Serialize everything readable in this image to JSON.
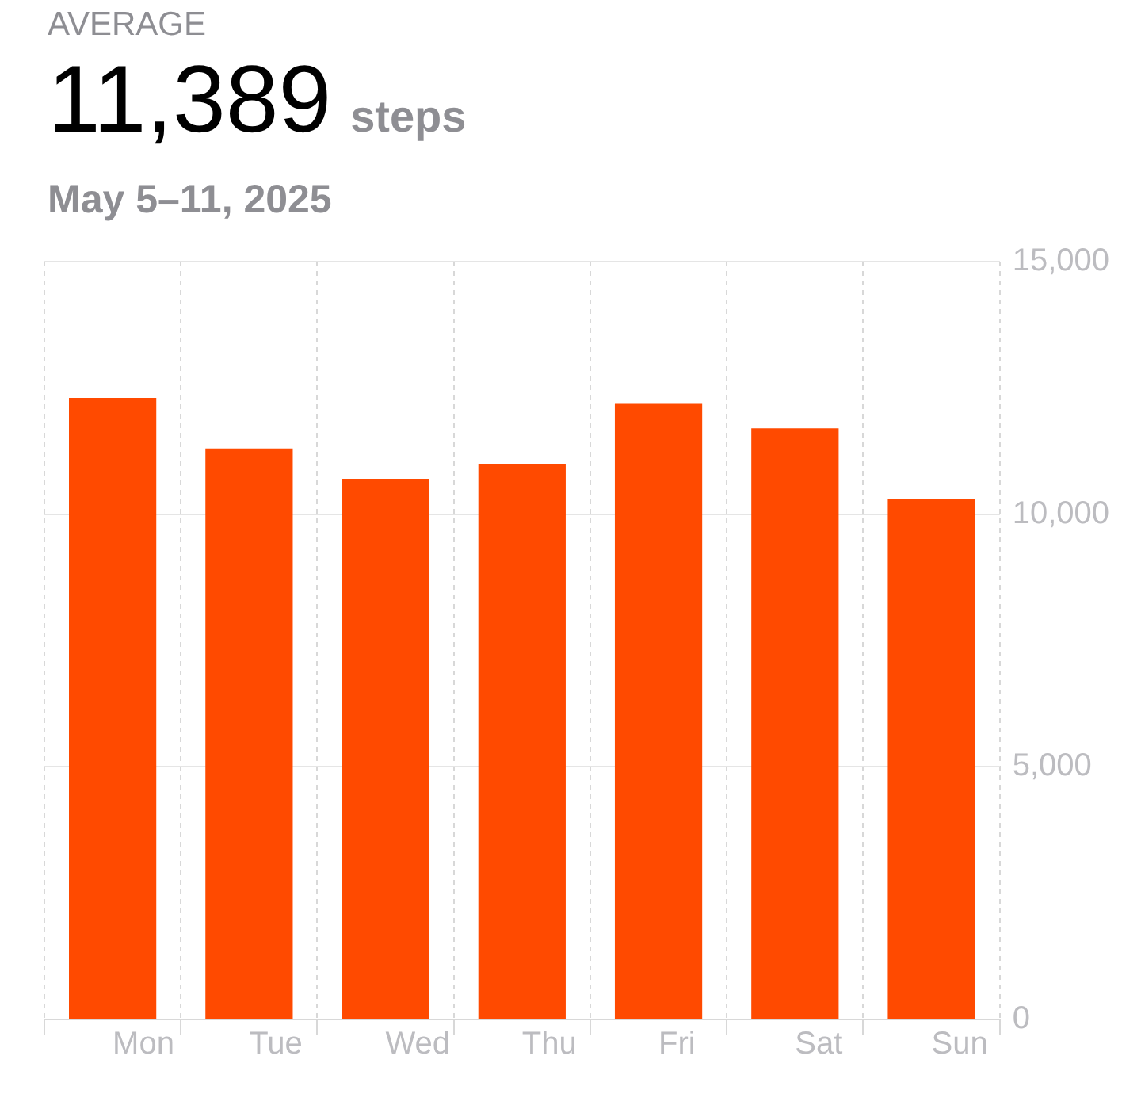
{
  "chart_data": {
    "type": "bar",
    "title": "AVERAGE",
    "subtitle": "May 5–11, 2025",
    "annotations": [
      "11,389",
      "steps"
    ],
    "categories": [
      "Mon",
      "Tue",
      "Wed",
      "Thu",
      "Fri",
      "Sat",
      "Sun"
    ],
    "values": [
      12300,
      11300,
      10700,
      11000,
      12200,
      11700,
      10300
    ],
    "color": "#ff4a00",
    "ylim": [
      0,
      15000
    ],
    "yticks": [
      {
        "value": 0,
        "label": "0"
      },
      {
        "value": 5000,
        "label": "5,000"
      },
      {
        "value": 10000,
        "label": "10,000"
      },
      {
        "value": 15000,
        "label": "15,000"
      }
    ],
    "grid": true,
    "legend": false
  }
}
